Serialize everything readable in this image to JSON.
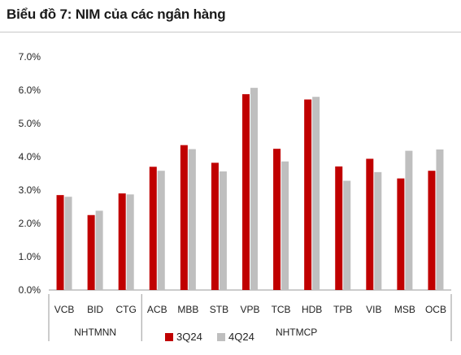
{
  "title": "Biểu đồ 7: NIM của các ngân hàng",
  "colors": {
    "s3Q24": "#c00000",
    "s4Q24": "#bfbfbf"
  },
  "chart_data": {
    "type": "bar",
    "title": "Biểu đồ 7: NIM của các ngân hàng",
    "xlabel": "",
    "ylabel": "",
    "ylim": [
      0,
      7
    ],
    "y_ticks": [
      "0.0%",
      "1.0%",
      "2.0%",
      "3.0%",
      "4.0%",
      "5.0%",
      "6.0%",
      "7.0%"
    ],
    "grid": false,
    "legend_position": "bottom",
    "categories": [
      "VCB",
      "BID",
      "CTG",
      "ACB",
      "MBB",
      "STB",
      "VPB",
      "TCB",
      "HDB",
      "TPB",
      "VIB",
      "MSB",
      "OCB"
    ],
    "groups": [
      {
        "name": "NHTMNN",
        "categories": [
          "VCB",
          "BID",
          "CTG"
        ]
      },
      {
        "name": "NHTMCP",
        "categories": [
          "ACB",
          "MBB",
          "STB",
          "VPB",
          "TCB",
          "HDB",
          "TPB",
          "VIB",
          "MSB",
          "OCB"
        ]
      }
    ],
    "series": [
      {
        "name": "3Q24",
        "color": "#c00000",
        "values": [
          2.85,
          2.25,
          2.9,
          3.7,
          4.35,
          3.82,
          5.88,
          4.24,
          5.72,
          3.71,
          3.94,
          3.35,
          3.58
        ]
      },
      {
        "name": "4Q24",
        "color": "#bfbfbf",
        "values": [
          2.8,
          2.38,
          2.87,
          3.58,
          4.23,
          3.56,
          6.07,
          3.86,
          5.8,
          3.28,
          3.54,
          4.18,
          4.22
        ]
      }
    ]
  }
}
